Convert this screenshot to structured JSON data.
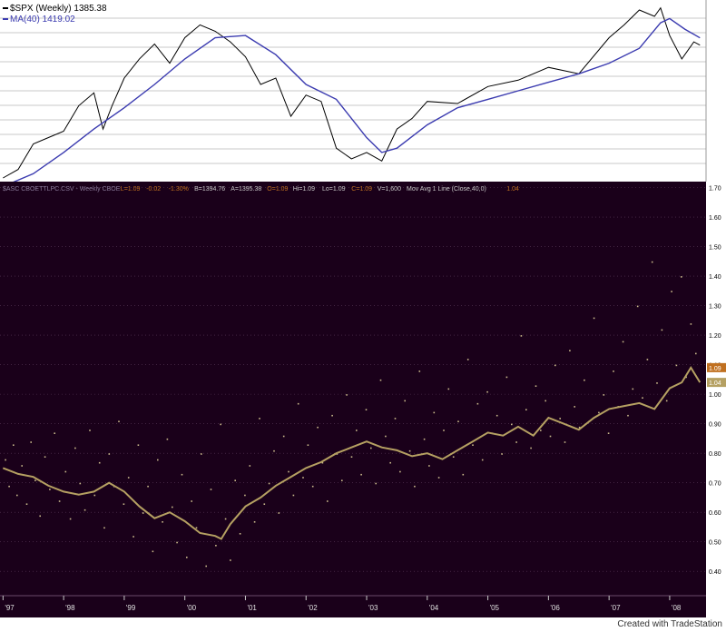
{
  "chart_data": [
    {
      "type": "line",
      "panel": "top",
      "title": "$SPX (Weekly) 1385.38",
      "legend": [
        {
          "label": "$SPX (Weekly) 1385.38",
          "color": "#000000"
        },
        {
          "label": "MA(40) 1419.02",
          "color": "#3b3bb0"
        }
      ],
      "series": [
        {
          "name": "$SPX (Weekly)",
          "color": "#000000",
          "x": [
            1997.0,
            1997.25,
            1997.5,
            1997.75,
            1998.0,
            1998.25,
            1998.5,
            1998.65,
            1998.8,
            1999.0,
            1999.25,
            1999.5,
            1999.75,
            2000.0,
            2000.25,
            2000.5,
            2000.75,
            2001.0,
            2001.25,
            2001.5,
            2001.75,
            2002.0,
            2002.25,
            2002.5,
            2002.75,
            2003.0,
            2003.25,
            2003.5,
            2003.75,
            2004.0,
            2004.5,
            2005.0,
            2005.5,
            2006.0,
            2006.5,
            2007.0,
            2007.25,
            2007.5,
            2007.75,
            2007.85,
            2008.0,
            2008.2,
            2008.4,
            2008.5
          ],
          "values": [
            760,
            800,
            920,
            950,
            980,
            1100,
            1160,
            990,
            1100,
            1230,
            1320,
            1390,
            1300,
            1420,
            1480,
            1450,
            1400,
            1330,
            1200,
            1230,
            1050,
            1150,
            1120,
            900,
            850,
            880,
            840,
            990,
            1040,
            1120,
            1110,
            1190,
            1220,
            1280,
            1250,
            1420,
            1480,
            1550,
            1520,
            1560,
            1430,
            1320,
            1400,
            1385
          ]
        },
        {
          "name": "MA(40)",
          "color": "#3b3bb0",
          "x": [
            1997.0,
            1997.5,
            1998.0,
            1998.5,
            1999.0,
            1999.5,
            2000.0,
            2000.5,
            2001.0,
            2001.5,
            2002.0,
            2002.5,
            2003.0,
            2003.25,
            2003.5,
            2004.0,
            2004.5,
            2005.0,
            2005.5,
            2006.0,
            2006.5,
            2007.0,
            2007.5,
            2007.85,
            2008.0,
            2008.25,
            2008.5
          ],
          "values": [
            720,
            780,
            880,
            990,
            1090,
            1200,
            1320,
            1420,
            1430,
            1340,
            1200,
            1130,
            950,
            880,
            900,
            1010,
            1090,
            1130,
            1170,
            1210,
            1250,
            1300,
            1370,
            1490,
            1510,
            1460,
            1419
          ]
        }
      ],
      "xlim": [
        1996.95,
        2008.6
      ],
      "ylim": [
        760,
        1580
      ]
    },
    {
      "type": "line",
      "panel": "bottom",
      "title": "$ASC CBOETTLPC.CSV - Weekly CBOE",
      "legend": [
        {
          "label": "$ASC CBOETTLPC.CSV - Weekly CBOE",
          "color": "#8a7a9a"
        },
        {
          "label": "L=1.09",
          "color": "#c07020"
        },
        {
          "label": "-0.02",
          "color": "#c07020"
        },
        {
          "label": "-1.30%",
          "color": "#c07020"
        },
        {
          "label": "B=1394.76",
          "color": "#c8c8c8"
        },
        {
          "label": "A=1395.38",
          "color": "#c8c8c8"
        },
        {
          "label": "O=1.09",
          "color": "#c07020"
        },
        {
          "label": "Hi=1.09",
          "color": "#c8c8c8"
        },
        {
          "label": "Lo=1.09",
          "color": "#c8c8c8"
        },
        {
          "label": "C=1.09",
          "color": "#c07020"
        },
        {
          "label": "V=1,600",
          "color": "#c8c8c8"
        },
        {
          "label": "Mov Avg 1 Line (Close,40,0)",
          "color": "#c8c8c8"
        },
        {
          "label": "1.04",
          "color": "#c07020"
        }
      ],
      "series": [
        {
          "name": "Mov Avg 1 Line (Close,40,0)",
          "color": "#b5a062",
          "x": [
            1997.0,
            1997.25,
            1997.5,
            1997.75,
            1998.0,
            1998.25,
            1998.5,
            1998.75,
            1999.0,
            1999.25,
            1999.5,
            1999.75,
            2000.0,
            2000.25,
            2000.5,
            2000.6,
            2000.75,
            2001.0,
            2001.25,
            2001.5,
            2001.75,
            2002.0,
            2002.25,
            2002.5,
            2002.75,
            2003.0,
            2003.25,
            2003.5,
            2003.75,
            2004.0,
            2004.25,
            2004.5,
            2004.75,
            2005.0,
            2005.25,
            2005.5,
            2005.75,
            2006.0,
            2006.25,
            2006.5,
            2006.75,
            2007.0,
            2007.25,
            2007.5,
            2007.75,
            2008.0,
            2008.2,
            2008.35,
            2008.5
          ],
          "values": [
            0.75,
            0.73,
            0.72,
            0.69,
            0.67,
            0.66,
            0.67,
            0.7,
            0.67,
            0.62,
            0.58,
            0.6,
            0.57,
            0.53,
            0.52,
            0.51,
            0.56,
            0.62,
            0.65,
            0.69,
            0.72,
            0.75,
            0.77,
            0.8,
            0.82,
            0.84,
            0.82,
            0.81,
            0.79,
            0.8,
            0.78,
            0.81,
            0.84,
            0.87,
            0.86,
            0.89,
            0.86,
            0.92,
            0.9,
            0.88,
            0.92,
            0.95,
            0.96,
            0.97,
            0.95,
            1.02,
            1.04,
            1.09,
            1.04
          ]
        }
      ],
      "scatter": {
        "name": "CBOETTLPC",
        "color": "#c9b98a",
        "x": [
          1997.03,
          1997.09,
          1997.16,
          1997.22,
          1997.3,
          1997.38,
          1997.45,
          1997.52,
          1997.6,
          1997.68,
          1997.76,
          1997.84,
          1997.92,
          1998.02,
          1998.1,
          1998.18,
          1998.26,
          1998.34,
          1998.42,
          1998.5,
          1998.58,
          1998.66,
          1998.74,
          1998.82,
          1998.9,
          1998.98,
          1999.06,
          1999.14,
          1999.22,
          1999.3,
          1999.38,
          1999.46,
          1999.54,
          1999.62,
          1999.7,
          1999.78,
          1999.86,
          1999.94,
          2000.02,
          2000.1,
          2000.18,
          2000.26,
          2000.34,
          2000.42,
          2000.5,
          2000.58,
          2000.66,
          2000.74,
          2000.82,
          2000.9,
          2000.98,
          2001.06,
          2001.14,
          2001.22,
          2001.3,
          2001.38,
          2001.46,
          2001.54,
          2001.62,
          2001.7,
          2001.78,
          2001.86,
          2001.94,
          2002.02,
          2002.1,
          2002.18,
          2002.26,
          2002.34,
          2002.42,
          2002.5,
          2002.58,
          2002.66,
          2002.74,
          2002.82,
          2002.9,
          2002.98,
          2003.06,
          2003.14,
          2003.22,
          2003.3,
          2003.38,
          2003.46,
          2003.54,
          2003.62,
          2003.7,
          2003.78,
          2003.86,
          2003.94,
          2004.02,
          2004.1,
          2004.18,
          2004.26,
          2004.34,
          2004.42,
          2004.5,
          2004.58,
          2004.66,
          2004.74,
          2004.82,
          2004.9,
          2004.98,
          2005.06,
          2005.14,
          2005.22,
          2005.3,
          2005.38,
          2005.46,
          2005.54,
          2005.62,
          2005.7,
          2005.78,
          2005.86,
          2005.94,
          2006.02,
          2006.1,
          2006.18,
          2006.26,
          2006.34,
          2006.42,
          2006.5,
          2006.58,
          2006.66,
          2006.74,
          2006.82,
          2006.9,
          2006.98,
          2007.06,
          2007.14,
          2007.22,
          2007.3,
          2007.38,
          2007.46,
          2007.54,
          2007.62,
          2007.7,
          2007.78,
          2007.86,
          2007.94,
          2008.02,
          2008.1,
          2008.18,
          2008.26,
          2008.34,
          2008.42
        ],
        "values": [
          0.78,
          0.69,
          0.83,
          0.66,
          0.76,
          0.63,
          0.84,
          0.71,
          0.59,
          0.79,
          0.68,
          0.87,
          0.64,
          0.74,
          0.58,
          0.82,
          0.7,
          0.61,
          0.88,
          0.66,
          0.77,
          0.55,
          0.8,
          0.69,
          0.91,
          0.63,
          0.72,
          0.52,
          0.83,
          0.6,
          0.69,
          0.47,
          0.78,
          0.57,
          0.85,
          0.62,
          0.5,
          0.73,
          0.45,
          0.64,
          0.55,
          0.8,
          0.42,
          0.68,
          0.49,
          0.9,
          0.58,
          0.44,
          0.71,
          0.53,
          0.66,
          0.76,
          0.57,
          0.92,
          0.63,
          0.7,
          0.81,
          0.6,
          0.86,
          0.74,
          0.66,
          0.97,
          0.72,
          0.83,
          0.69,
          0.89,
          0.77,
          0.64,
          0.93,
          0.8,
          0.71,
          1.0,
          0.79,
          0.88,
          0.73,
          0.95,
          0.82,
          0.7,
          1.05,
          0.86,
          0.77,
          0.92,
          0.74,
          0.98,
          0.81,
          0.69,
          1.08,
          0.85,
          0.76,
          0.94,
          0.72,
          0.88,
          1.02,
          0.79,
          0.91,
          0.73,
          1.12,
          0.83,
          0.97,
          0.78,
          1.01,
          0.87,
          0.93,
          0.8,
          1.06,
          0.9,
          0.84,
          1.2,
          0.95,
          0.82,
          1.03,
          0.88,
          0.98,
          0.86,
          1.1,
          0.92,
          0.84,
          1.15,
          0.96,
          0.89,
          1.05,
          0.91,
          1.26,
          0.94,
          1.0,
          0.87,
          1.08,
          0.96,
          1.18,
          0.93,
          1.02,
          1.3,
          0.99,
          1.12,
          1.45,
          1.04,
          1.22,
          0.98,
          1.35,
          1.1,
          1.4,
          1.06,
          1.24,
          1.14
        ]
      },
      "xlim": [
        1996.95,
        2008.6
      ],
      "ylim": [
        0.33,
        1.72
      ],
      "yticks": [
        "1.70",
        "1.60",
        "1.50",
        "1.40",
        "1.30",
        "1.20",
        "1.10",
        "1.00",
        "0.90",
        "0.80",
        "0.70",
        "0.60",
        "0.50",
        "0.40"
      ],
      "ytick_values": [
        1.7,
        1.6,
        1.5,
        1.4,
        1.3,
        1.2,
        1.1,
        1.0,
        0.9,
        0.8,
        0.7,
        0.6,
        0.5,
        0.4
      ],
      "last_value_tags": [
        {
          "label": "1.09",
          "value": 1.09,
          "color": "#c07020"
        },
        {
          "label": "1.04",
          "value": 1.04,
          "color": "#b5a062"
        }
      ],
      "xticks": [
        "'97",
        "'98",
        "'99",
        "'00",
        "'01",
        "'02",
        "'03",
        "'04",
        "'05",
        "'06",
        "'07",
        "'08"
      ],
      "xtick_values": [
        1997.0,
        1998.0,
        1999.0,
        2000.0,
        2001.0,
        2002.0,
        2003.0,
        2004.0,
        2005.0,
        2006.0,
        2007.0,
        2008.0
      ]
    }
  ],
  "footer": {
    "credit": "Created with TradeStation"
  },
  "colors": {
    "top_bg": "#ffffff",
    "top_grid": "#c8c8c8",
    "bottom_bg": "#1a001a",
    "bottom_grid": "#5a3a5a",
    "axis_text_light": "#e0e0e0",
    "axis_text_dark": "#000000"
  }
}
